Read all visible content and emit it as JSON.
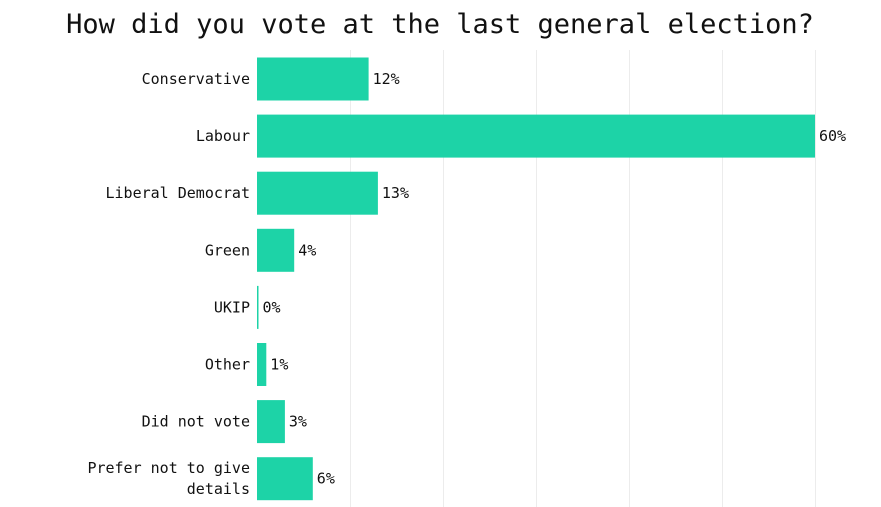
{
  "chart_data": {
    "type": "bar",
    "orientation": "horizontal",
    "title": "How did you vote at the last general election?",
    "categories": [
      "Conservative",
      "Labour",
      "Liberal Democrat",
      "Green",
      "UKIP",
      "Other",
      "Did not vote",
      "Prefer not to give details"
    ],
    "category_label_lines": [
      [
        "Conservative"
      ],
      [
        "Labour"
      ],
      [
        "Liberal Democrat"
      ],
      [
        "Green"
      ],
      [
        "UKIP"
      ],
      [
        "Other"
      ],
      [
        "Did not vote"
      ],
      [
        "Prefer not to give",
        "details"
      ]
    ],
    "values": [
      12,
      60,
      13,
      4,
      0,
      1,
      3,
      6
    ],
    "value_labels": [
      "12%",
      "60%",
      "13%",
      "4%",
      "0%",
      "1%",
      "3%",
      "6%"
    ],
    "xlim": [
      0,
      60
    ],
    "gridline_values": [
      10,
      20,
      30,
      40,
      50,
      60
    ],
    "xlabel": "",
    "ylabel": "",
    "grid": true,
    "legend": "none",
    "bar_color": "#1dd3a7"
  }
}
